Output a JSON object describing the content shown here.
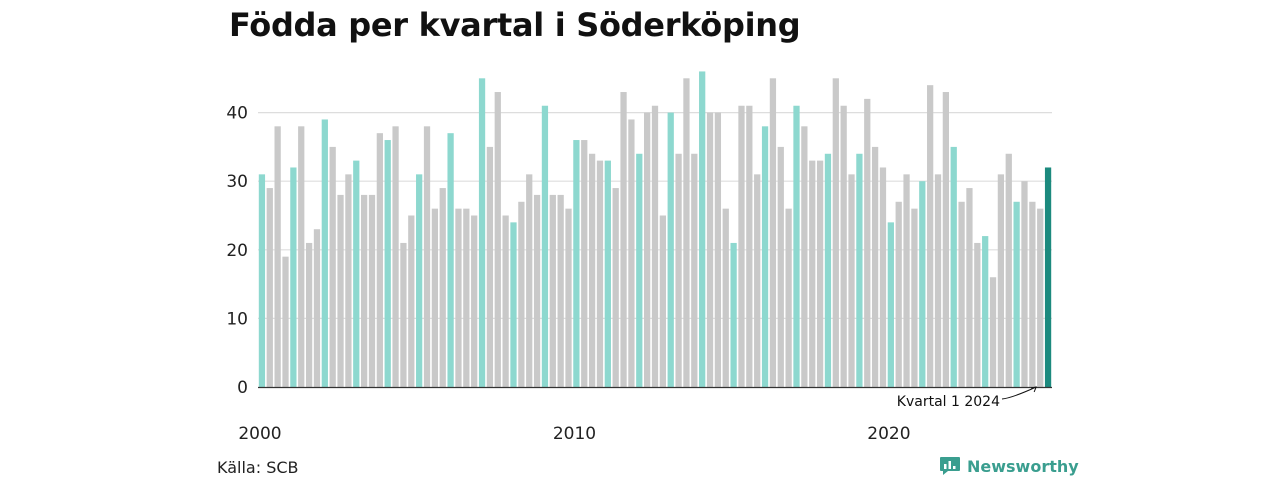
{
  "header": {
    "title": "Födda per kvartal i Söderköping"
  },
  "footer": {
    "source": "Källa: SCB",
    "brand": "Newsworthy"
  },
  "colors": {
    "q1": "#8dd8cf",
    "other": "#c9c9c9",
    "highlight": "#1c8a7e",
    "grid": "#dddddd",
    "text": "#222222"
  },
  "chart_data": {
    "type": "bar",
    "title": "Födda per kvartal i Söderköping",
    "xlabel": "",
    "ylabel": "",
    "ylim": [
      0,
      48
    ],
    "yticks": [
      0,
      10,
      20,
      30,
      40
    ],
    "xtick_labels": [
      "2000",
      "2010",
      "2020"
    ],
    "grid": true,
    "start_year": 2000,
    "categories_format": "quarterly, 2000 Q1 – 2024 Q1",
    "values": [
      31,
      29,
      38,
      19,
      32,
      38,
      21,
      23,
      39,
      35,
      28,
      31,
      33,
      28,
      28,
      37,
      36,
      38,
      21,
      25,
      31,
      38,
      26,
      29,
      37,
      26,
      26,
      25,
      45,
      35,
      43,
      25,
      24,
      27,
      31,
      28,
      41,
      28,
      28,
      26,
      36,
      36,
      34,
      33,
      33,
      29,
      43,
      39,
      34,
      40,
      41,
      25,
      40,
      34,
      45,
      34,
      46,
      40,
      40,
      26,
      21,
      41,
      41,
      31,
      38,
      45,
      35,
      26,
      41,
      38,
      33,
      33,
      34,
      45,
      41,
      31,
      34,
      42,
      35,
      32,
      24,
      27,
      31,
      26,
      30,
      44,
      31,
      43,
      35,
      27,
      29,
      21,
      22,
      16,
      31,
      34,
      27,
      30,
      27,
      26,
      32
    ],
    "annotation": {
      "text": "Kvartal 1 2024"
    }
  }
}
